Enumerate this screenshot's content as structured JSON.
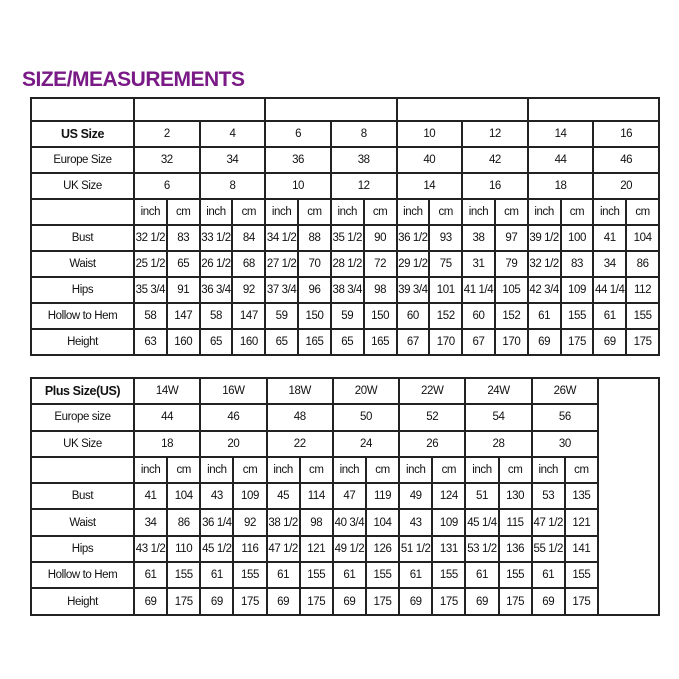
{
  "title": "SIZE/MEASUREMENTS",
  "title_color": "#7a1a86",
  "standard_table": {
    "size_rows": [
      {
        "label": "US Size",
        "values": [
          "2",
          "4",
          "6",
          "8",
          "10",
          "12",
          "14",
          "16"
        ]
      },
      {
        "label": "Europe Size",
        "values": [
          "32",
          "34",
          "36",
          "38",
          "40",
          "42",
          "44",
          "46"
        ]
      },
      {
        "label": "UK Size",
        "values": [
          "6",
          "8",
          "10",
          "12",
          "14",
          "16",
          "18",
          "20"
        ]
      }
    ],
    "units": [
      "inch",
      "cm"
    ],
    "measure_rows": [
      {
        "label": "Bust",
        "values": [
          "32 1/2",
          "83",
          "33 1/2",
          "84",
          "34 1/2",
          "88",
          "35 1/2",
          "90",
          "36 1/2",
          "93",
          "38",
          "97",
          "39 1/2",
          "100",
          "41",
          "104"
        ]
      },
      {
        "label": "Waist",
        "values": [
          "25 1/2",
          "65",
          "26 1/2",
          "68",
          "27 1/2",
          "70",
          "28 1/2",
          "72",
          "29 1/2",
          "75",
          "31",
          "79",
          "32 1/2",
          "83",
          "34",
          "86"
        ]
      },
      {
        "label": "Hips",
        "values": [
          "35 3/4",
          "91",
          "36 3/4",
          "92",
          "37 3/4",
          "96",
          "38 3/4",
          "98",
          "39 3/4",
          "101",
          "41 1/4",
          "105",
          "42 3/4",
          "109",
          "44 1/4",
          "112"
        ]
      },
      {
        "label": "Hollow to Hem",
        "values": [
          "58",
          "147",
          "58",
          "147",
          "59",
          "150",
          "59",
          "150",
          "60",
          "152",
          "60",
          "152",
          "61",
          "155",
          "61",
          "155"
        ]
      },
      {
        "label": "Height",
        "values": [
          "63",
          "160",
          "65",
          "160",
          "65",
          "165",
          "65",
          "165",
          "67",
          "170",
          "67",
          "170",
          "69",
          "175",
          "69",
          "175"
        ]
      }
    ]
  },
  "plus_table": {
    "size_rows": [
      {
        "label": "Plus Size(US)",
        "values": [
          "14W",
          "16W",
          "18W",
          "20W",
          "22W",
          "24W",
          "26W"
        ]
      },
      {
        "label": "Europe size",
        "values": [
          "44",
          "46",
          "48",
          "50",
          "52",
          "54",
          "56"
        ]
      },
      {
        "label": "UK Size",
        "values": [
          "18",
          "20",
          "22",
          "24",
          "26",
          "28",
          "30"
        ]
      }
    ],
    "units": [
      "inch",
      "cm"
    ],
    "measure_rows": [
      {
        "label": "Bust",
        "values": [
          "41",
          "104",
          "43",
          "109",
          "45",
          "114",
          "47",
          "119",
          "49",
          "124",
          "51",
          "130",
          "53",
          "135"
        ]
      },
      {
        "label": "Waist",
        "values": [
          "34",
          "86",
          "36 1/4",
          "92",
          "38 1/2",
          "98",
          "40 3/4",
          "104",
          "43",
          "109",
          "45 1/4",
          "115",
          "47 1/2",
          "121"
        ]
      },
      {
        "label": "Hips",
        "values": [
          "43 1/2",
          "110",
          "45 1/2",
          "116",
          "47 1/2",
          "121",
          "49 1/2",
          "126",
          "51 1/2",
          "131",
          "53 1/2",
          "136",
          "55 1/2",
          "141"
        ]
      },
      {
        "label": "Hollow to Hem",
        "values": [
          "61",
          "155",
          "61",
          "155",
          "61",
          "155",
          "61",
          "155",
          "61",
          "155",
          "61",
          "155",
          "61",
          "155"
        ]
      },
      {
        "label": "Height",
        "values": [
          "69",
          "175",
          "69",
          "175",
          "69",
          "175",
          "69",
          "175",
          "69",
          "175",
          "69",
          "175",
          "69",
          "175"
        ]
      }
    ]
  }
}
